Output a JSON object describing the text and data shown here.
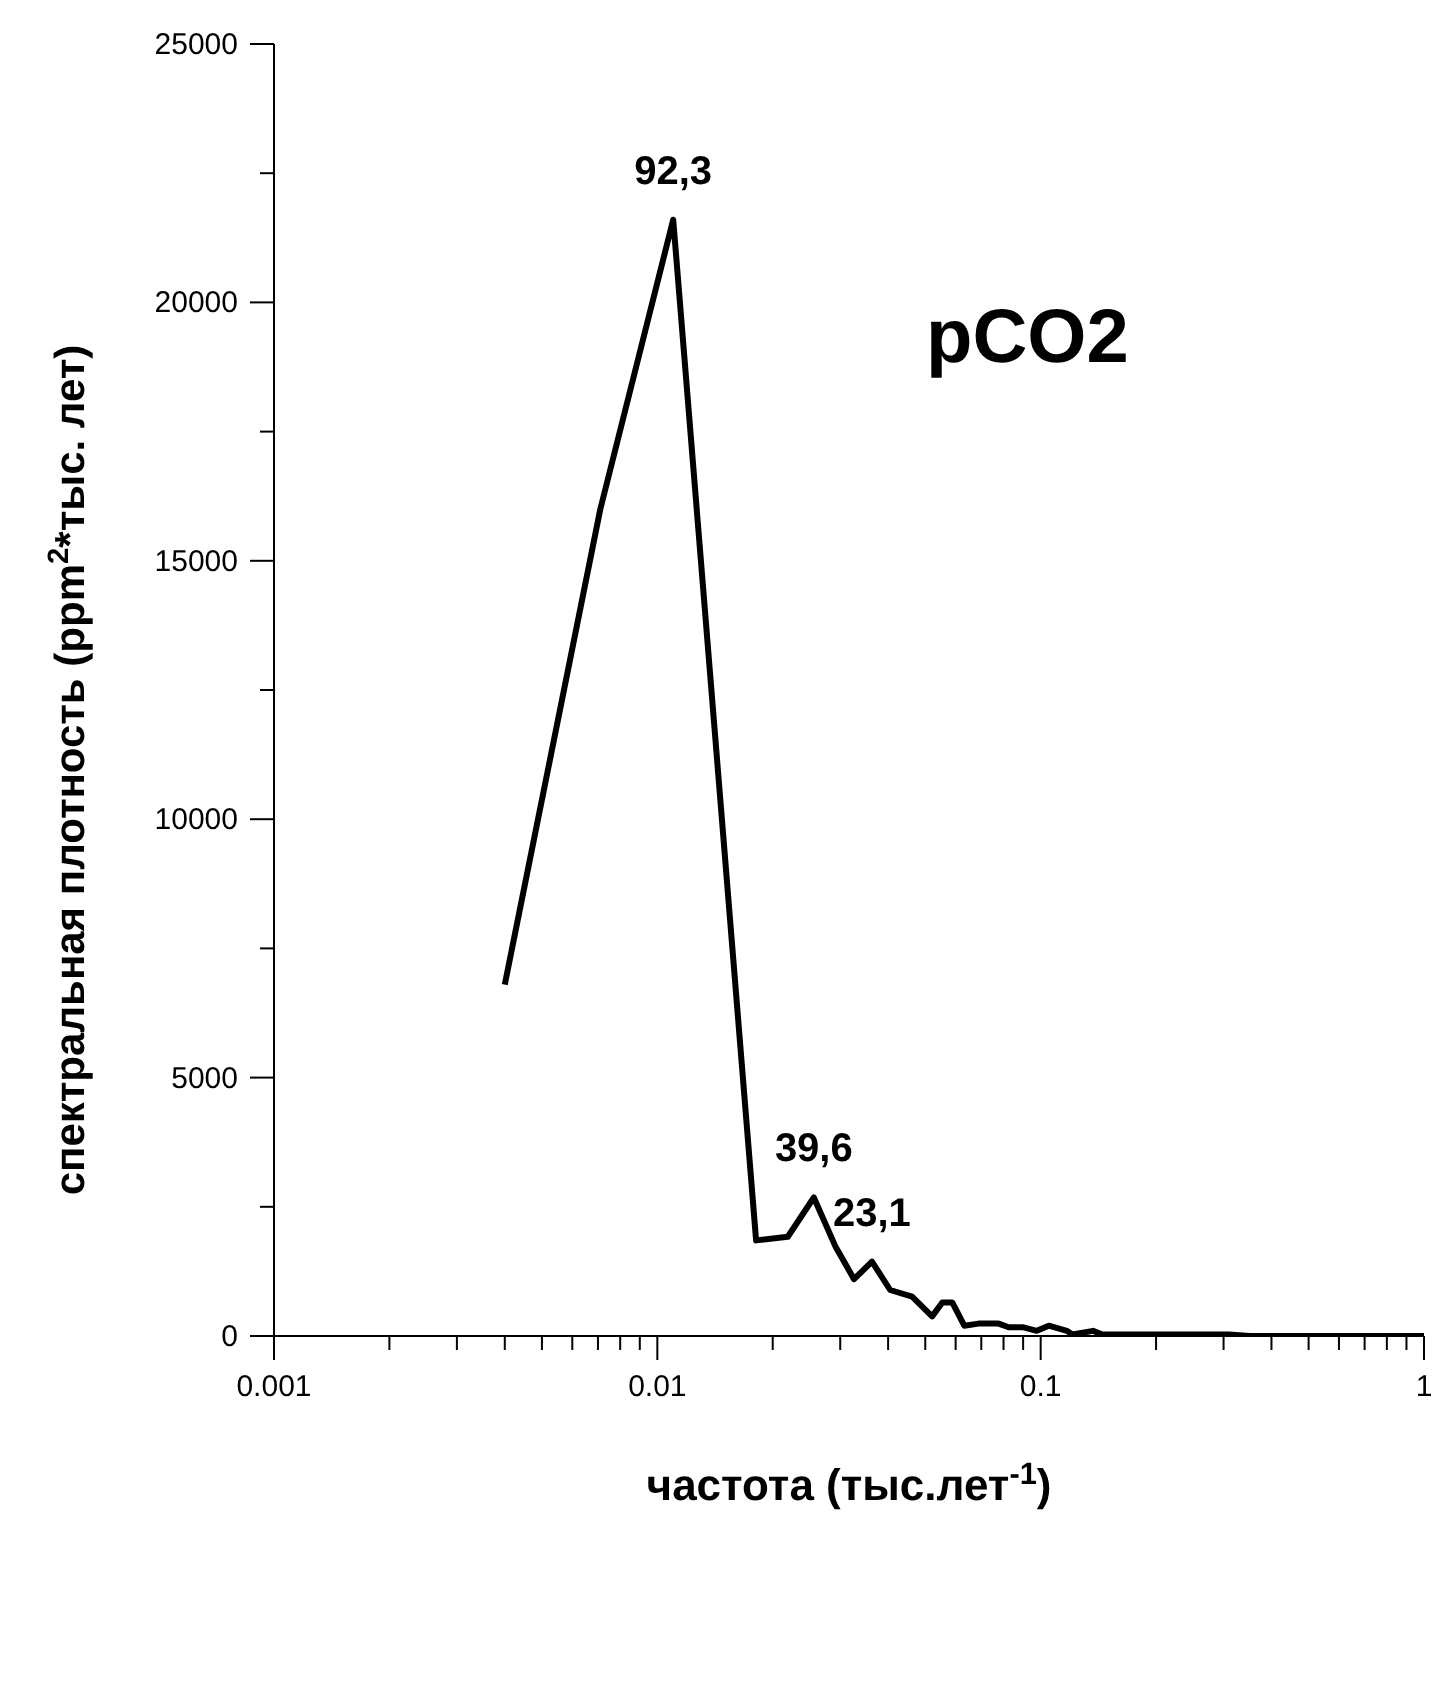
{
  "chart_data": {
    "type": "line",
    "title": null,
    "xlabel": "частота  (тыс.лет$^{-1}$)",
    "ylabel": "спектральная плотность (ppm$^{2}$*тыс. лет)",
    "annotations": [
      "pCO2",
      {
        "text": "92,3",
        "x": 0.011,
        "y": 21600
      },
      {
        "text": "39,6",
        "x": 0.0256,
        "y": 2680
      },
      {
        "text": "23,1",
        "x": 0.0363,
        "y": 1440
      }
    ],
    "x": [
      0.004,
      0.0071,
      0.011,
      0.0181,
      0.0219,
      0.0256,
      0.0292,
      0.0326,
      0.0363,
      0.0405,
      0.0462,
      0.0521,
      0.0554,
      0.0588,
      0.0632,
      0.0688,
      0.0777,
      0.0825,
      0.0897,
      0.0977,
      0.105,
      0.117,
      0.121,
      0.137,
      0.145,
      0.31,
      0.351,
      1
    ],
    "series": [
      {
        "color": "#000000",
        "values": [
          6800,
          16000,
          21600,
          1850,
          1920,
          2680,
          1720,
          1100,
          1440,
          890,
          760,
          380,
          650,
          650,
          200,
          240,
          240,
          170,
          170,
          100,
          200,
          100,
          30,
          100,
          30,
          30,
          0,
          0
        ]
      }
    ],
    "log": "x",
    "marker": "none",
    "line_style": "solid",
    "xlim": [
      0.001,
      1
    ],
    "ylim": [
      0,
      25000
    ],
    "xticks": [
      0.001,
      {
        "value": 0.002,
        "label": null
      },
      {
        "value": 0.003,
        "label": null
      },
      {
        "value": 0.004,
        "label": null
      },
      {
        "value": 0.005,
        "label": null
      },
      {
        "value": 0.006,
        "label": null
      },
      {
        "value": 0.007,
        "label": null
      },
      {
        "value": 0.008,
        "label": null
      },
      {
        "value": 0.009,
        "label": null
      },
      0.01,
      {
        "value": 0.02,
        "label": null
      },
      {
        "value": 0.03,
        "label": null
      },
      {
        "value": 0.04,
        "label": null
      },
      {
        "value": 0.05,
        "label": null
      },
      {
        "value": 0.06,
        "label": null
      },
      {
        "value": 0.07,
        "label": null
      },
      {
        "value": 0.08,
        "label": null
      },
      {
        "value": 0.09,
        "label": null
      },
      0.1,
      {
        "value": 0.2,
        "label": null
      },
      {
        "value": 0.3,
        "label": null
      },
      {
        "value": 0.4,
        "label": null
      },
      {
        "value": 0.5,
        "label": null
      },
      {
        "value": 0.6,
        "label": null
      },
      {
        "value": 0.7,
        "label": null
      },
      {
        "value": 0.8,
        "label": null
      },
      {
        "value": 0.9,
        "label": null
      },
      1
    ],
    "yticks": [
      0,
      {
        "value": 2500,
        "label": null
      },
      5000,
      {
        "value": 7500,
        "label": null
      },
      10000,
      {
        "value": 12500,
        "label": null
      },
      15000,
      {
        "value": 17500,
        "label": null
      },
      20000,
      {
        "value": 22500,
        "label": null
      },
      25000
    ]
  }
}
